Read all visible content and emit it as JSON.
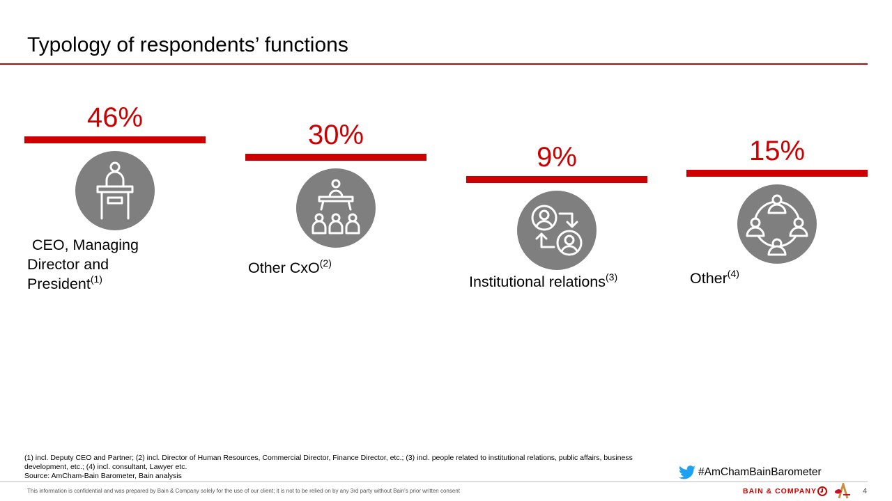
{
  "page": {
    "title": "Typology of respondents’ functions"
  },
  "chart_data": {
    "type": "bar",
    "categories": [
      "CEO, Managing Director and President",
      "Other CxO",
      "Institutional relations",
      "Other"
    ],
    "values": [
      46,
      30,
      9,
      15
    ],
    "value_labels": [
      "46%",
      "30%",
      "9%",
      "15%"
    ],
    "footnote_refs": [
      "(1)",
      "(2)",
      "(3)",
      "(4)"
    ],
    "label_lines": [
      [
        "CEO, Managing",
        "Director and",
        "President"
      ],
      [
        "Other CxO"
      ],
      [
        "Institutional relations"
      ],
      [
        "Other"
      ]
    ],
    "icons": [
      "presenter-podium-icon",
      "leader-team-icon",
      "exchange-people-icon",
      "people-circle-icon"
    ],
    "unit": "%",
    "bar_color": "#cc0000",
    "icon_circle_color": "#7f7f7f"
  },
  "footnotes": {
    "line1": "(1) incl. Deputy CEO and Partner; (2) incl. Director of Human Resources, Commercial Director, Finance Director, etc.; (3) incl. people related to institutional relations, public affairs, business",
    "line2": "development, etc.; (4) incl. consultant, Lawyer etc.",
    "source": "Source: AmCham-Bain Barometer, Bain analysis"
  },
  "hashtag": {
    "icon": "twitter-bird-icon",
    "text": "#AmChamBainBarometer",
    "color": "#1da1f2"
  },
  "footer": {
    "confidential": "This information is confidential and was prepared by Bain & Company solely for the use of our client; it is not to be relied on by any 3rd party without Bain's prior written consent",
    "brand": "BAIN & COMPANY",
    "page_number": "4"
  }
}
